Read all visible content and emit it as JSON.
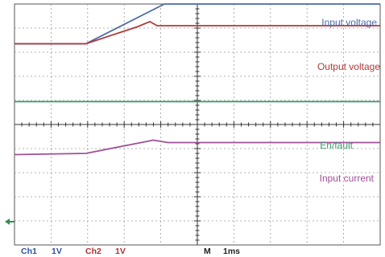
{
  "chart_data": {
    "type": "line",
    "title": "",
    "xlabel": "",
    "ylabel": "",
    "x_range": [
      0,
      10
    ],
    "y_range": [
      0,
      10
    ],
    "grid": true,
    "series": [
      {
        "name": "Input voltage",
        "color": "#4a6aa8",
        "x": [
          0,
          1.95,
          4.1,
          10
        ],
        "y": [
          8.35,
          8.35,
          10.0,
          10.0
        ]
      },
      {
        "name": "Output voltage",
        "color": "#b03a3a",
        "x": [
          0,
          1.95,
          3.35,
          3.7,
          3.9,
          10
        ],
        "y": [
          8.35,
          8.35,
          9.05,
          9.27,
          9.1,
          9.1
        ]
      },
      {
        "name": "En/fault",
        "color": "#3a9a6a",
        "x": [
          0,
          10
        ],
        "y": [
          5.95,
          5.95
        ]
      },
      {
        "name": "Input current",
        "color": "#a05098",
        "x": [
          0,
          1.95,
          3.8,
          4.2,
          10
        ],
        "y": [
          3.75,
          3.8,
          4.35,
          4.25,
          4.25
        ]
      }
    ]
  },
  "status_bar": {
    "ch1": "Ch1",
    "ch1_scale": "1V",
    "ch2": "Ch2",
    "ch2_scale": "1V",
    "timebase_label": "M",
    "timebase_value": "1ms"
  },
  "colors": {
    "channel1": "#2f4f9f",
    "channel2": "#b03030",
    "ground_marker": "#2f8f4f"
  }
}
